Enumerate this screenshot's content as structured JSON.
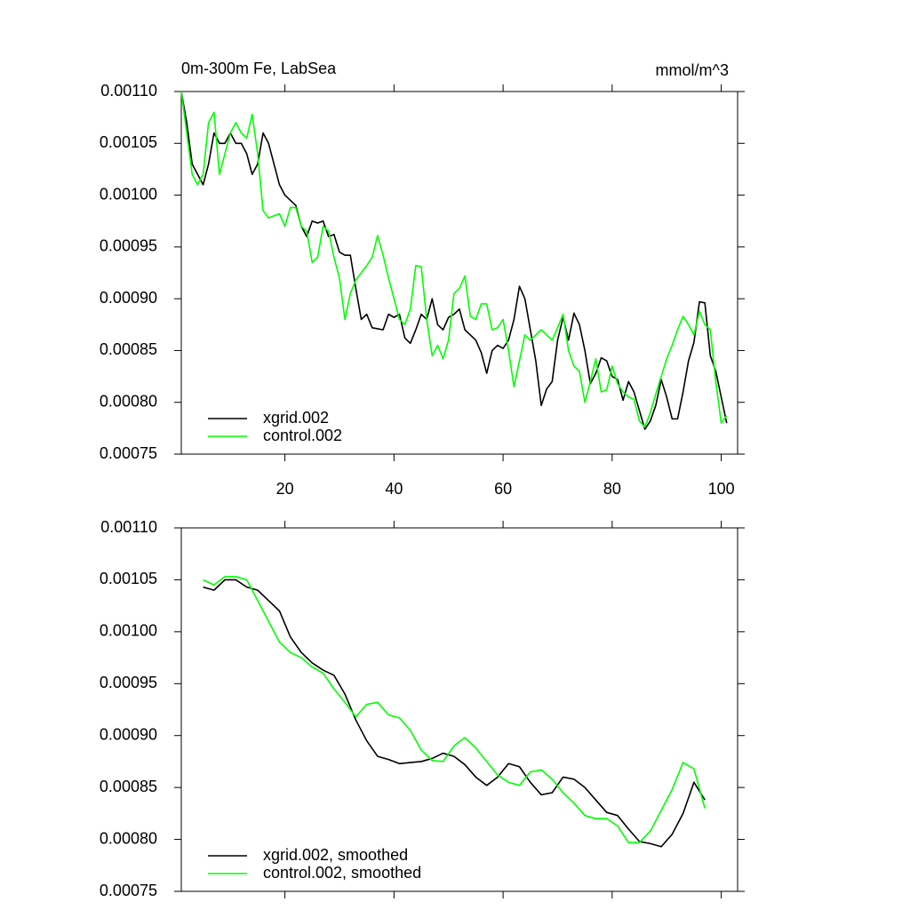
{
  "chart_data": [
    {
      "type": "line",
      "title": "0m-300m Fe, LabSea",
      "units": "mmol/m^3",
      "x": [
        1,
        2,
        3,
        4,
        5,
        6,
        7,
        8,
        9,
        10,
        11,
        12,
        13,
        14,
        15,
        16,
        17,
        18,
        19,
        20,
        21,
        22,
        23,
        24,
        25,
        26,
        27,
        28,
        29,
        30,
        31,
        32,
        33,
        34,
        35,
        36,
        37,
        38,
        39,
        40,
        41,
        42,
        43,
        44,
        45,
        46,
        47,
        48,
        49,
        50,
        51,
        52,
        53,
        54,
        55,
        56,
        57,
        58,
        59,
        60,
        61,
        62,
        63,
        64,
        65,
        66,
        67,
        68,
        69,
        70,
        71,
        72,
        73,
        74,
        75,
        76,
        77,
        78,
        79,
        80,
        81,
        82,
        83,
        84,
        85,
        86,
        87,
        88,
        89,
        90,
        91,
        92,
        93,
        94,
        95,
        96,
        97,
        98,
        99,
        100,
        101
      ],
      "xlim": [
        1,
        103
      ],
      "xticks": [
        20,
        40,
        60,
        80,
        100
      ],
      "show_xtick_labels": true,
      "ylim": [
        0.00075,
        0.0011
      ],
      "yticks": [
        0.00075,
        {
          "value": 0.0008,
          "label": "0.00080"
        },
        {
          "value": 0.00085,
          "label": "0.00085"
        },
        {
          "value": 0.0009,
          "label": "0.00090"
        },
        {
          "value": 0.00095,
          "label": "0.00095"
        },
        {
          "value": 0.001,
          "label": "0.00100"
        },
        {
          "value": 0.00105,
          "label": "0.00105"
        },
        {
          "value": 0.0011,
          "label": "0.00110"
        }
      ],
      "legend": "lower left",
      "series": [
        {
          "name": "xgrid.002",
          "color": "#000000",
          "values": [
            0.0011,
            0.00107,
            0.00103,
            0.00102,
            0.00101,
            0.00103,
            0.00106,
            0.00105,
            0.00105,
            0.00106,
            0.00105,
            0.00105,
            0.00104,
            0.00102,
            0.00103,
            0.00106,
            0.00105,
            0.00103,
            0.00101,
            0.001,
            0.000995,
            0.00099,
            0.00097,
            0.00096,
            0.000975,
            0.000973,
            0.000975,
            0.00096,
            0.000962,
            0.000945,
            0.000942,
            0.000942,
            0.00091,
            0.00088,
            0.000885,
            0.000872,
            0.000871,
            0.00087,
            0.000885,
            0.000882,
            0.000885,
            0.000862,
            0.000857,
            0.00087,
            0.000885,
            0.00088,
            0.0009,
            0.000875,
            0.00087,
            0.000882,
            0.000885,
            0.00089,
            0.00087,
            0.000865,
            0.00086,
            0.000848,
            0.000828,
            0.00085,
            0.000855,
            0.000852,
            0.00086,
            0.00088,
            0.000912,
            0.0009,
            0.00087,
            0.00084,
            0.000797,
            0.000813,
            0.00082,
            0.00086,
            0.000882,
            0.00086,
            0.000886,
            0.000875,
            0.00085,
            0.000818,
            0.000828,
            0.000843,
            0.00084,
            0.000825,
            0.000822,
            0.000802,
            0.00082,
            0.00081,
            0.000792,
            0.000774,
            0.000782,
            0.000797,
            0.000822,
            0.000805,
            0.000784,
            0.000784,
            0.00081,
            0.00084,
            0.000858,
            0.000897,
            0.000896,
            0.000845,
            0.00083,
            0.000805,
            0.00078
          ]
        },
        {
          "name": "control.002",
          "color": "#00ff00",
          "values": [
            0.0011,
            0.00106,
            0.00102,
            0.00101,
            0.00102,
            0.00107,
            0.00108,
            0.00102,
            0.00104,
            0.00106,
            0.00107,
            0.00106,
            0.001055,
            0.001078,
            0.00104,
            0.000985,
            0.000978,
            0.00098,
            0.000982,
            0.00097,
            0.000988,
            0.000988,
            0.00097,
            0.000965,
            0.000935,
            0.00094,
            0.00097,
            0.000965,
            0.00094,
            0.00092,
            0.00088,
            0.000905,
            0.000918,
            0.000925,
            0.000932,
            0.00094,
            0.000961,
            0.000942,
            0.00092,
            0.0009,
            0.00088,
            0.000875,
            0.00089,
            0.000932,
            0.000931,
            0.00088,
            0.000845,
            0.000855,
            0.000842,
            0.00086,
            0.000905,
            0.00091,
            0.000922,
            0.000883,
            0.00088,
            0.000895,
            0.000895,
            0.00087,
            0.000872,
            0.00088,
            0.00085,
            0.000815,
            0.00084,
            0.000865,
            0.00086,
            0.000865,
            0.00087,
            0.000865,
            0.00086,
            0.000872,
            0.000885,
            0.00085,
            0.000835,
            0.00083,
            0.0008,
            0.00082,
            0.000842,
            0.00081,
            0.000812,
            0.000835,
            0.000818,
            0.00081,
            0.000805,
            0.000803,
            0.000782,
            0.000776,
            0.00079,
            0.000808,
            0.000825,
            0.000842,
            0.000855,
            0.00087,
            0.000883,
            0.000875,
            0.000865,
            0.000888,
            0.000875,
            0.00087,
            0.00082,
            0.00078,
            0.000787
          ]
        }
      ]
    },
    {
      "type": "line",
      "x": [
        5,
        7,
        9,
        11,
        13,
        15,
        17,
        19,
        21,
        23,
        25,
        27,
        29,
        31,
        33,
        35,
        37,
        39,
        41,
        43,
        45,
        47,
        49,
        51,
        53,
        55,
        57,
        59,
        61,
        63,
        65,
        67,
        69,
        71,
        73,
        75,
        77,
        79,
        81,
        83,
        85,
        87,
        89,
        91,
        93,
        95,
        97
      ],
      "xlim": [
        1,
        103
      ],
      "xticks": [
        20,
        40,
        60,
        80,
        100
      ],
      "show_xtick_labels": false,
      "ylim": [
        0.00075,
        0.0011
      ],
      "yticks": [
        0.00075,
        {
          "value": 0.0008,
          "label": "0.00080"
        },
        {
          "value": 0.00085,
          "label": "0.00085"
        },
        {
          "value": 0.0009,
          "label": "0.00090"
        },
        {
          "value": 0.00095,
          "label": "0.00095"
        },
        {
          "value": 0.001,
          "label": "0.00100"
        },
        {
          "value": 0.00105,
          "label": "0.00105"
        },
        {
          "value": 0.0011,
          "label": "0.00110"
        }
      ],
      "legend": "lower left",
      "series": [
        {
          "name": "xgrid.002, smoothed",
          "color": "#000000",
          "values": [
            0.001043,
            0.00104,
            0.00105,
            0.00105,
            0.001043,
            0.00104,
            0.00103,
            0.00102,
            0.000995,
            0.00098,
            0.00097,
            0.000963,
            0.000958,
            0.00094,
            0.000915,
            0.000895,
            0.00088,
            0.000877,
            0.000873,
            0.000874,
            0.000875,
            0.000878,
            0.000883,
            0.00088,
            0.000872,
            0.00086,
            0.000852,
            0.00086,
            0.000873,
            0.00087,
            0.000855,
            0.000843,
            0.000845,
            0.00086,
            0.000858,
            0.00085,
            0.000838,
            0.000826,
            0.000823,
            0.00081,
            0.000798,
            0.000796,
            0.000793,
            0.000805,
            0.000825,
            0.000855,
            0.000838
          ]
        },
        {
          "name": "control.002, smoothed",
          "color": "#00ff00",
          "values": [
            0.00105,
            0.001045,
            0.001053,
            0.001053,
            0.00105,
            0.00103,
            0.00101,
            0.00099,
            0.00098,
            0.000975,
            0.000966,
            0.00096,
            0.000945,
            0.000932,
            0.000918,
            0.00093,
            0.000932,
            0.00092,
            0.000917,
            0.000905,
            0.000886,
            0.000876,
            0.000875,
            0.00089,
            0.000898,
            0.000888,
            0.000875,
            0.000862,
            0.000855,
            0.000852,
            0.000865,
            0.000867,
            0.000858,
            0.000845,
            0.000835,
            0.000823,
            0.00082,
            0.00082,
            0.000813,
            0.000797,
            0.000797,
            0.000808,
            0.000828,
            0.000848,
            0.000874,
            0.000868,
            0.00083
          ]
        }
      ]
    }
  ]
}
